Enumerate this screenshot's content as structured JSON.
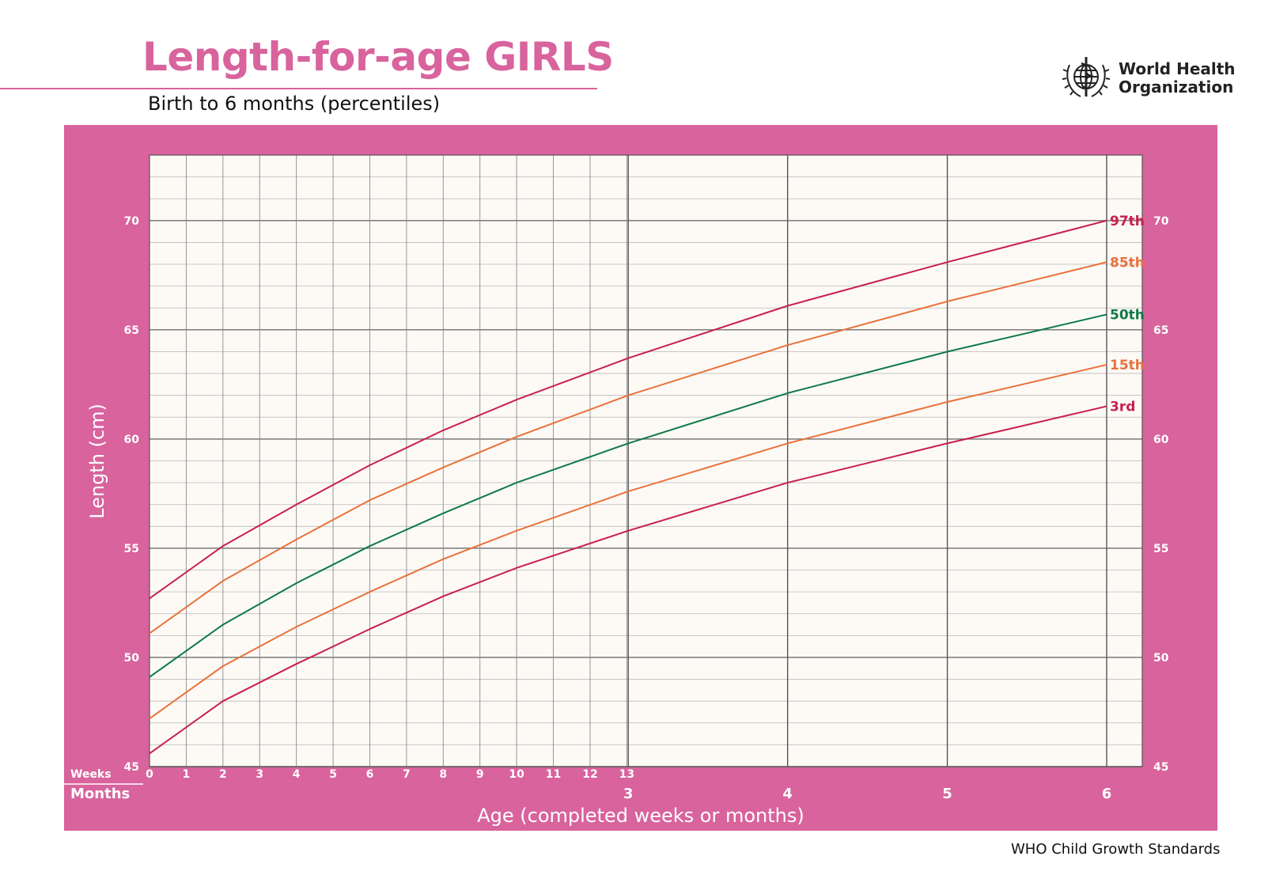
{
  "header": {
    "title": "Length-for-age GIRLS",
    "subtitle": "Birth to 6 months (percentiles)"
  },
  "logo": {
    "line1": "World Health",
    "line2": "Organization",
    "icon": "who-emblem-icon"
  },
  "footer": {
    "text": "WHO Child Growth Standards"
  },
  "colors": {
    "brand_pink": "#d8639d",
    "plot_background": "#fdfaf6",
    "p3": "#c8204a",
    "p15": "#e8723c",
    "p50": "#0f7a45",
    "p85": "#e8723c",
    "p97": "#c8204a"
  },
  "chart_data": {
    "type": "line",
    "title": "Length-for-age GIRLS",
    "subtitle": "Birth to 6 months (percentiles)",
    "xlabel": "Age (completed weeks or months)",
    "ylabel": "Length (cm)",
    "x_units": "weeks",
    "xlim": [
      0,
      26
    ],
    "ylim": [
      45,
      73
    ],
    "grid": true,
    "weeks_axis_label": "Weeks",
    "months_axis_label": "Months",
    "week_ticks": [
      "0",
      "1",
      "2",
      "3",
      "4",
      "5",
      "6",
      "7",
      "8",
      "9",
      "10",
      "11",
      "12",
      "13"
    ],
    "month_ticks": [
      {
        "label": "3",
        "week": 13.04
      },
      {
        "label": "4",
        "week": 17.38
      },
      {
        "label": "5",
        "week": 21.73
      },
      {
        "label": "6",
        "week": 26.07
      }
    ],
    "y_ticks": [
      "45",
      "50",
      "55",
      "60",
      "65",
      "70"
    ],
    "x": [
      0,
      2,
      4,
      6,
      8,
      10,
      13.04,
      17.38,
      21.73,
      26.07
    ],
    "series": [
      {
        "name": "3rd",
        "color": "#c8204a",
        "values": [
          45.6,
          48.0,
          49.7,
          51.3,
          52.8,
          54.1,
          55.8,
          58.0,
          59.8,
          61.5
        ]
      },
      {
        "name": "15th",
        "color": "#e8723c",
        "values": [
          47.2,
          49.6,
          51.4,
          53.0,
          54.5,
          55.8,
          57.6,
          59.8,
          61.7,
          63.4
        ]
      },
      {
        "name": "50th",
        "color": "#0f7a45",
        "values": [
          49.1,
          51.5,
          53.4,
          55.1,
          56.6,
          58.0,
          59.8,
          62.1,
          64.0,
          65.7
        ]
      },
      {
        "name": "85th",
        "color": "#e8723c",
        "values": [
          51.1,
          53.5,
          55.4,
          57.2,
          58.7,
          60.1,
          62.0,
          64.3,
          66.3,
          68.1
        ]
      },
      {
        "name": "97th",
        "color": "#c8204a",
        "values": [
          52.7,
          55.1,
          57.0,
          58.8,
          60.4,
          61.8,
          63.7,
          66.1,
          68.1,
          70.0
        ]
      }
    ]
  }
}
